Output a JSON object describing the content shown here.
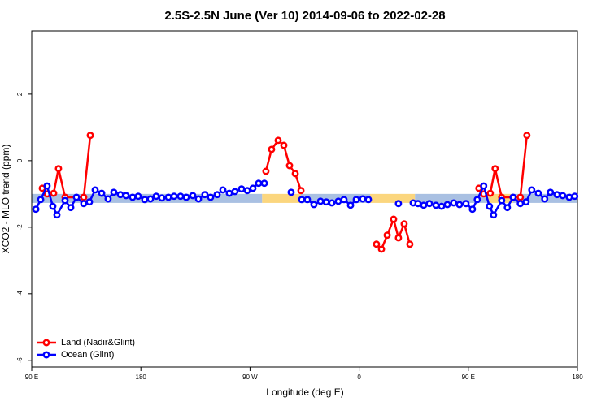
{
  "chart_data": {
    "type": "line",
    "title": "2.5S-2.5N June (Ver 10)   2014-09-06 to 2022-02-28",
    "x_label": "Longitude (deg E)",
    "y_label": "XCO2 - MLO trend (ppm)",
    "xlim": [
      90,
      540
    ],
    "ylim": [
      -6.2,
      3.9
    ],
    "xticks": [
      {
        "value": 90,
        "label": "90 E"
      },
      180,
      {
        "value": 270,
        "label": "90 W"
      },
      {
        "value": 360,
        "label": "0"
      },
      {
        "value": 450,
        "label": "90 E"
      },
      {
        "value": 540,
        "label": "180"
      }
    ],
    "yticks": [
      -6,
      -4,
      -2,
      0,
      2
    ],
    "legend": "bottom-left",
    "band": {
      "ylim": [
        -1.27,
        -1.0
      ],
      "segments": [
        {
          "x": [
            90,
            280
          ],
          "color": "#a9c0e2"
        },
        {
          "x": [
            280,
            312
          ],
          "color": "#fbd67e"
        },
        {
          "x": [
            312,
            369
          ],
          "color": "#a9c0e2"
        },
        {
          "x": [
            369,
            406
          ],
          "color": "#fbd67e"
        },
        {
          "x": [
            406,
            466
          ],
          "color": "#a9c0e2"
        },
        {
          "x": [
            466,
            487
          ],
          "color": "#fbd67e"
        },
        {
          "x": [
            487,
            540
          ],
          "color": "#a9c0e2"
        }
      ]
    },
    "series": [
      {
        "name": "Land (Nadir&Glint)",
        "color": "#ff0000",
        "x": [
          98.7,
          102.7,
          108.1,
          112.1,
          117.5,
          132.9,
          138.3,
          null,
          283.1,
          287.8,
          293.2,
          297.9,
          302.6,
          307.3,
          312,
          null,
          374.3,
          378.4,
          383.1,
          388.4,
          392.4,
          397.1,
          401.8,
          null,
          458.7,
          462.7,
          468.1,
          472.1,
          477.5,
          492.9,
          498.3
        ],
        "values": [
          -0.83,
          -1.0,
          -0.98,
          -0.24,
          -1.1,
          -1.1,
          0.76,
          null,
          -0.32,
          0.34,
          0.61,
          0.46,
          -0.15,
          -0.39,
          -0.9,
          null,
          -2.51,
          -2.66,
          -2.24,
          -1.76,
          -2.32,
          -1.9,
          -2.51,
          null,
          -0.83,
          -1.0,
          -0.98,
          -0.24,
          -1.1,
          -1.1,
          0.76
        ]
      },
      {
        "name": "Ocean (Glint)",
        "color": "#0000ff",
        "x": [
          93.4,
          97.4,
          102.7,
          107.4,
          110.8,
          117.5,
          122.2,
          126.9,
          132.9,
          137.6,
          142.3,
          147.7,
          153,
          157.7,
          163.1,
          167.8,
          173.2,
          177.8,
          183.2,
          187.9,
          192.6,
          197.3,
          202.7,
          207.4,
          212.7,
          217.4,
          222.8,
          227.5,
          232.8,
          237.5,
          242.9,
          247.6,
          252.9,
          257.6,
          263,
          267.7,
          272.4,
          277.1,
          281.8,
          null,
          303.9,
          null,
          312.6,
          317.3,
          322.7,
          328.1,
          332.8,
          337.5,
          342.8,
          347.5,
          352.9,
          357.6,
          362.9,
          367.6,
          null,
          392.4,
          null,
          404.5,
          408.5,
          413.2,
          417.9,
          423.3,
          428,
          432.7,
          438,
          442.7,
          448.1,
          453.4,
          457.4,
          462.7,
          467.4,
          470.8,
          477.5,
          482.2,
          486.9,
          492.9,
          497.6,
          502.3,
          507.7,
          513,
          517.7,
          523.1,
          527.8,
          533.2,
          537.8
        ],
        "values": [
          -1.46,
          -1.17,
          -0.76,
          -1.37,
          -1.63,
          -1.2,
          -1.41,
          -1.1,
          -1.29,
          -1.24,
          -0.88,
          -0.98,
          -1.15,
          -0.95,
          -1.02,
          -1.05,
          -1.1,
          -1.07,
          -1.17,
          -1.15,
          -1.07,
          -1.12,
          -1.1,
          -1.07,
          -1.07,
          -1.1,
          -1.05,
          -1.15,
          -1.02,
          -1.1,
          -1.02,
          -0.88,
          -0.98,
          -0.93,
          -0.85,
          -0.9,
          -0.83,
          -0.68,
          -0.68,
          null,
          -0.95,
          null,
          -1.17,
          -1.17,
          -1.32,
          -1.22,
          -1.24,
          -1.27,
          -1.22,
          -1.17,
          -1.34,
          -1.17,
          -1.15,
          -1.17,
          null,
          -1.29,
          null,
          -1.27,
          -1.29,
          -1.34,
          -1.29,
          -1.34,
          -1.37,
          -1.32,
          -1.27,
          -1.32,
          -1.29,
          -1.46,
          -1.17,
          -0.76,
          -1.37,
          -1.63,
          -1.2,
          -1.41,
          -1.1,
          -1.29,
          -1.24,
          -0.88,
          -0.98,
          -1.15,
          -0.95,
          -1.02,
          -1.05,
          -1.1,
          -1.07
        ]
      }
    ]
  }
}
